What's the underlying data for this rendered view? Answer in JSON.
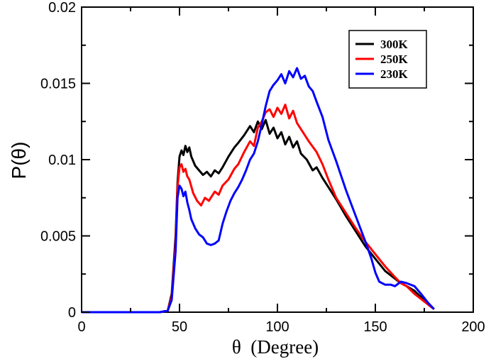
{
  "chart_data": {
    "type": "line",
    "xlabel": "θ  (Degree)",
    "ylabel": "P(θ)",
    "xlim": [
      0,
      200
    ],
    "ylim": [
      0,
      0.02
    ],
    "xticks": [
      0,
      50,
      100,
      150,
      200
    ],
    "xtick_labels": [
      "0",
      "50",
      "100",
      "150",
      "200"
    ],
    "yticks": [
      0,
      0.005,
      0.01,
      0.015,
      0.02
    ],
    "ytick_labels": [
      "0",
      "0.005",
      "0.01",
      "0.015",
      "0.02"
    ],
    "legend_position": "top-right",
    "series": [
      {
        "name": "300K",
        "color": "#000000",
        "x": [
          0,
          40,
          44,
          46,
          48,
          49,
          50,
          51,
          52,
          53,
          54,
          55,
          56,
          58,
          60,
          62,
          64,
          66,
          68,
          70,
          72,
          75,
          78,
          80,
          83,
          86,
          88,
          90,
          92,
          94,
          96,
          98,
          100,
          102,
          104,
          106,
          108,
          110,
          112,
          115,
          118,
          120,
          123,
          126,
          130,
          135,
          140,
          145,
          150,
          155,
          160,
          163,
          166,
          170,
          174,
          177,
          180
        ],
        "y": [
          0,
          0,
          0.0001,
          0.0012,
          0.005,
          0.0085,
          0.0102,
          0.0106,
          0.0103,
          0.0109,
          0.0105,
          0.0108,
          0.0102,
          0.0096,
          0.0093,
          0.009,
          0.0092,
          0.0089,
          0.0093,
          0.0091,
          0.0095,
          0.0102,
          0.0108,
          0.0111,
          0.0116,
          0.0122,
          0.0118,
          0.0125,
          0.012,
          0.0126,
          0.0117,
          0.0121,
          0.0114,
          0.0118,
          0.011,
          0.0115,
          0.0108,
          0.0112,
          0.0104,
          0.01,
          0.0093,
          0.0095,
          0.0088,
          0.0082,
          0.0074,
          0.0063,
          0.0053,
          0.0043,
          0.0035,
          0.0027,
          0.0022,
          0.0019,
          0.0017,
          0.0014,
          0.0009,
          0.0005,
          0.0002
        ]
      },
      {
        "name": "250K",
        "color": "#ff0000",
        "x": [
          0,
          40,
          44,
          46,
          48,
          49,
          50,
          51,
          52,
          53,
          54,
          55,
          57,
          59,
          61,
          63,
          65,
          68,
          70,
          72,
          75,
          78,
          80,
          83,
          86,
          88,
          90,
          92,
          94,
          96,
          98,
          100,
          102,
          104,
          106,
          108,
          110,
          113,
          116,
          120,
          123,
          126,
          130,
          135,
          140,
          145,
          150,
          155,
          160,
          163,
          166,
          170,
          174,
          177,
          180
        ],
        "y": [
          0,
          0,
          0.0001,
          0.001,
          0.0045,
          0.0082,
          0.0095,
          0.0097,
          0.0092,
          0.0094,
          0.0089,
          0.0087,
          0.0078,
          0.0073,
          0.007,
          0.0075,
          0.0073,
          0.0079,
          0.0077,
          0.0083,
          0.0087,
          0.0094,
          0.0097,
          0.0105,
          0.0112,
          0.0109,
          0.0121,
          0.0125,
          0.0131,
          0.0133,
          0.0128,
          0.0134,
          0.013,
          0.0136,
          0.0127,
          0.0132,
          0.0124,
          0.0118,
          0.0112,
          0.0105,
          0.0097,
          0.0087,
          0.0075,
          0.0065,
          0.0055,
          0.0046,
          0.0038,
          0.003,
          0.0023,
          0.0019,
          0.0017,
          0.0012,
          0.0008,
          0.0005,
          0.0002
        ]
      },
      {
        "name": "230K",
        "color": "#0000ff",
        "x": [
          0,
          40,
          44,
          46,
          48,
          49,
          50,
          51,
          52,
          53,
          54,
          55,
          56,
          58,
          60,
          62,
          64,
          66,
          68,
          70,
          72,
          74,
          76,
          78,
          80,
          82,
          84,
          86,
          88,
          90,
          92,
          94,
          96,
          98,
          100,
          102,
          104,
          106,
          108,
          110,
          112,
          114,
          116,
          118,
          120,
          123,
          126,
          130,
          135,
          140,
          145,
          148,
          150,
          152,
          155,
          158,
          160,
          163,
          166,
          170,
          174,
          177,
          180
        ],
        "y": [
          0,
          0,
          0.0001,
          0.0008,
          0.004,
          0.0075,
          0.0083,
          0.0081,
          0.0076,
          0.0079,
          0.0072,
          0.0067,
          0.0061,
          0.0055,
          0.0051,
          0.0049,
          0.0045,
          0.0044,
          0.0045,
          0.0047,
          0.0058,
          0.0066,
          0.0073,
          0.0078,
          0.0082,
          0.0087,
          0.0093,
          0.01,
          0.0104,
          0.0112,
          0.0123,
          0.0135,
          0.0145,
          0.0149,
          0.0152,
          0.0156,
          0.015,
          0.0158,
          0.0154,
          0.016,
          0.0153,
          0.0155,
          0.0148,
          0.0145,
          0.0138,
          0.0128,
          0.0113,
          0.0099,
          0.008,
          0.0063,
          0.0046,
          0.0035,
          0.0026,
          0.002,
          0.0018,
          0.0018,
          0.0017,
          0.002,
          0.0019,
          0.0017,
          0.0011,
          0.0006,
          0.0002
        ]
      }
    ]
  }
}
